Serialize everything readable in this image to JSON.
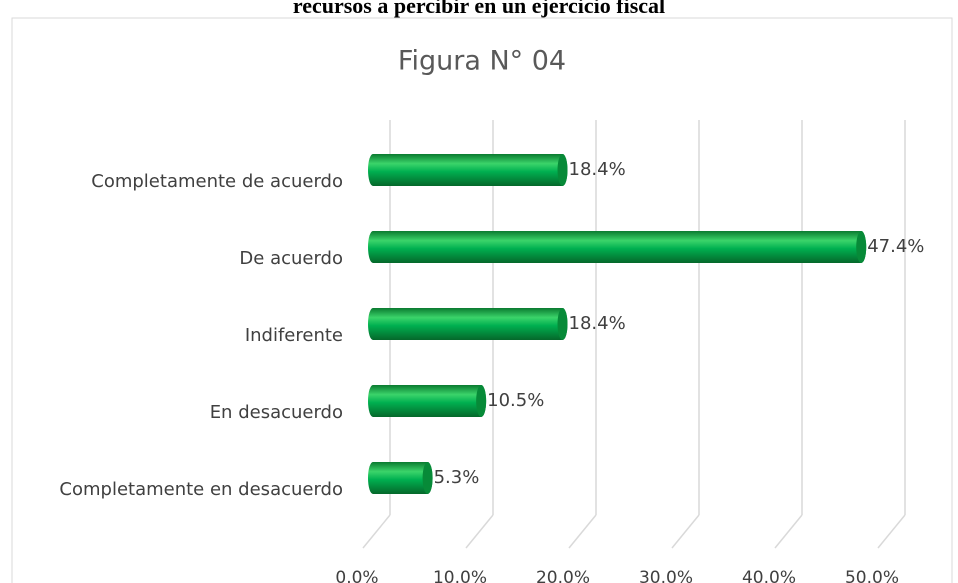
{
  "header": "recursos a percibir en un ejercicio fiscal",
  "chart_data": {
    "type": "bar",
    "orientation": "horizontal",
    "title": "Figura N° 04",
    "categories": [
      "Completamente de acuerdo",
      "De acuerdo",
      "Indiferente",
      "En desacuerdo",
      "Completamente en desacuerdo"
    ],
    "values": [
      18.4,
      47.4,
      18.4,
      10.5,
      5.3
    ],
    "value_labels": [
      "18.4%",
      "47.4%",
      "18.4%",
      "10.5%",
      "5.3%"
    ],
    "color": "#00b050",
    "xlim": [
      0,
      50
    ],
    "xticks": [
      {
        "value": 0,
        "label": "0.0%"
      },
      {
        "value": 10,
        "label": "10.0%"
      },
      {
        "value": 20,
        "label": "20.0%"
      },
      {
        "value": 30,
        "label": "30.0%"
      },
      {
        "value": 40,
        "label": "40.0%"
      },
      {
        "value": 50,
        "label": "50.0%"
      }
    ],
    "grid": true
  }
}
